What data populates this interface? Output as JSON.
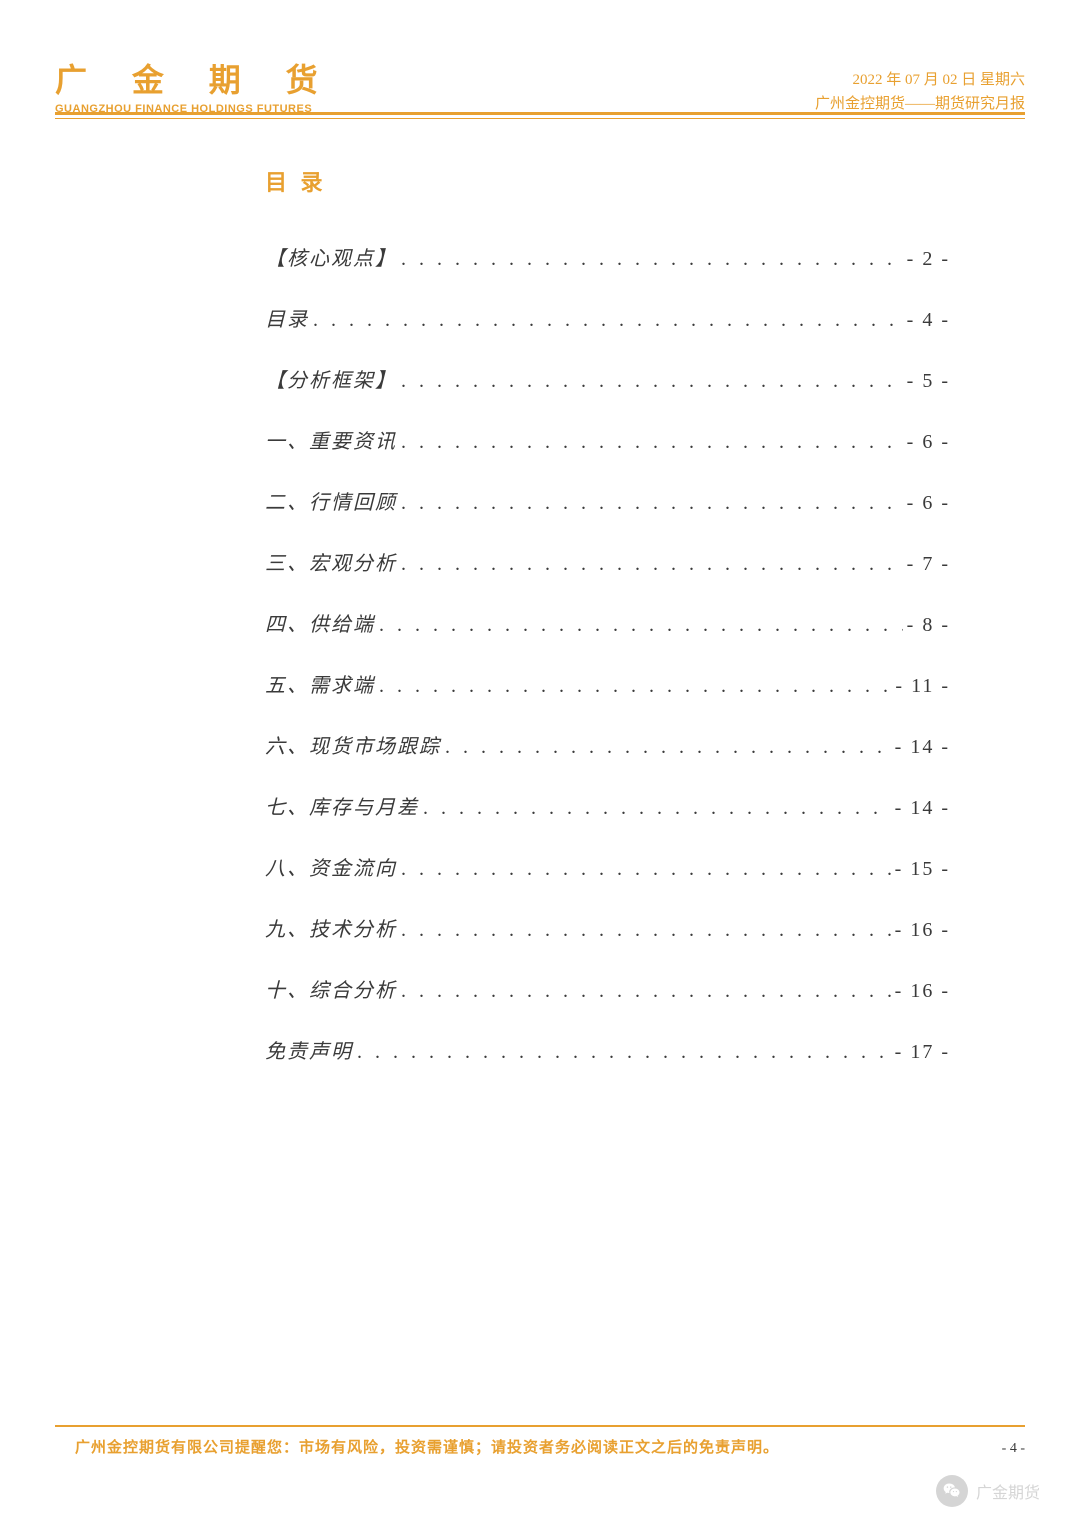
{
  "header": {
    "logo_main": "广 金 期 货",
    "logo_sub": "GUANGZHOU FINANCE HOLDINGS FUTURES",
    "date": "2022 年 07 月 02 日 星期六",
    "subtitle": "广州金控期货——期货研究月报",
    "accent_color": "#e8a030"
  },
  "title": "目 录",
  "toc": [
    {
      "label": "【核心观点】",
      "page": "- 2 -"
    },
    {
      "label": "目录",
      "page": "- 4 -"
    },
    {
      "label": "【分析框架】",
      "page": "- 5 -"
    },
    {
      "label": "一、重要资讯",
      "page": "- 6 -"
    },
    {
      "label": "二、行情回顾",
      "page": "- 6 -"
    },
    {
      "label": "三、宏观分析",
      "page": "- 7 -"
    },
    {
      "label": "四、供给端",
      "page": "- 8 -"
    },
    {
      "label": "五、需求端",
      "page": "- 11 -"
    },
    {
      "label": "六、现货市场跟踪",
      "page": "- 14 -"
    },
    {
      "label": "七、库存与月差",
      "page": "- 14 -"
    },
    {
      "label": "八、资金流向",
      "page": "- 15 -"
    },
    {
      "label": "九、技术分析",
      "page": "- 16 -"
    },
    {
      "label": "十、综合分析",
      "page": "- 16 -"
    },
    {
      "label": "免责声明",
      "page": "- 17 -"
    }
  ],
  "footer": {
    "disclaimer": "广州金控期货有限公司提醒您：市场有风险，投资需谨慎；请投资者务必阅读正文之后的免责声明。",
    "page_number": "- 4 -"
  },
  "watermark": {
    "text": "广金期货"
  },
  "style": {
    "body_font_size": 20,
    "text_color": "#3a3a3a",
    "toc_row_spacing": 32,
    "dots_fill": ". . . . . . . . . . . . . . . . . . . . . . . . . . . . . . . . . . . . . . . . . . . . . . . . . ."
  }
}
